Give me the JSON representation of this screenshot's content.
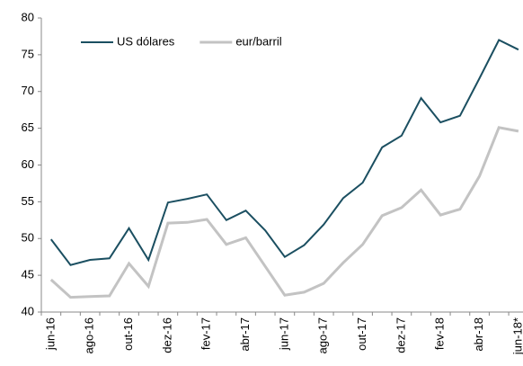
{
  "chart_data": {
    "type": "line",
    "categories": [
      "jun-16",
      null,
      "ago-16",
      null,
      "out-16",
      null,
      "dez-16",
      null,
      "fev-17",
      null,
      "abr-17",
      null,
      "jun-17",
      null,
      "ago-17",
      null,
      "out-17",
      null,
      "dez-17",
      null,
      "fev-18",
      null,
      "abr-18",
      null,
      "jun-18*"
    ],
    "series": [
      {
        "name": "US dólares",
        "color": "#1b4f61",
        "values": [
          49.9,
          46.4,
          47.1,
          47.3,
          51.4,
          47.1,
          54.9,
          55.4,
          56.0,
          52.5,
          53.8,
          51.1,
          47.5,
          49.1,
          51.9,
          55.5,
          57.6,
          62.4,
          64.0,
          69.1,
          65.8,
          66.7,
          71.8,
          77.0,
          75.7
        ]
      },
      {
        "name": "eur/barril",
        "color": "#c3c3c3",
        "values": [
          44.4,
          42.0,
          42.1,
          42.2,
          46.6,
          43.5,
          52.1,
          52.2,
          52.6,
          49.2,
          50.1,
          46.2,
          42.3,
          42.7,
          43.9,
          46.7,
          49.2,
          53.1,
          54.2,
          56.6,
          53.2,
          54.0,
          58.5,
          65.1,
          64.6
        ]
      }
    ],
    "ylim": [
      40,
      80
    ],
    "yticks": [
      40,
      45,
      50,
      55,
      60,
      65,
      70,
      75,
      80
    ],
    "grid": false,
    "legend": "top-left"
  }
}
